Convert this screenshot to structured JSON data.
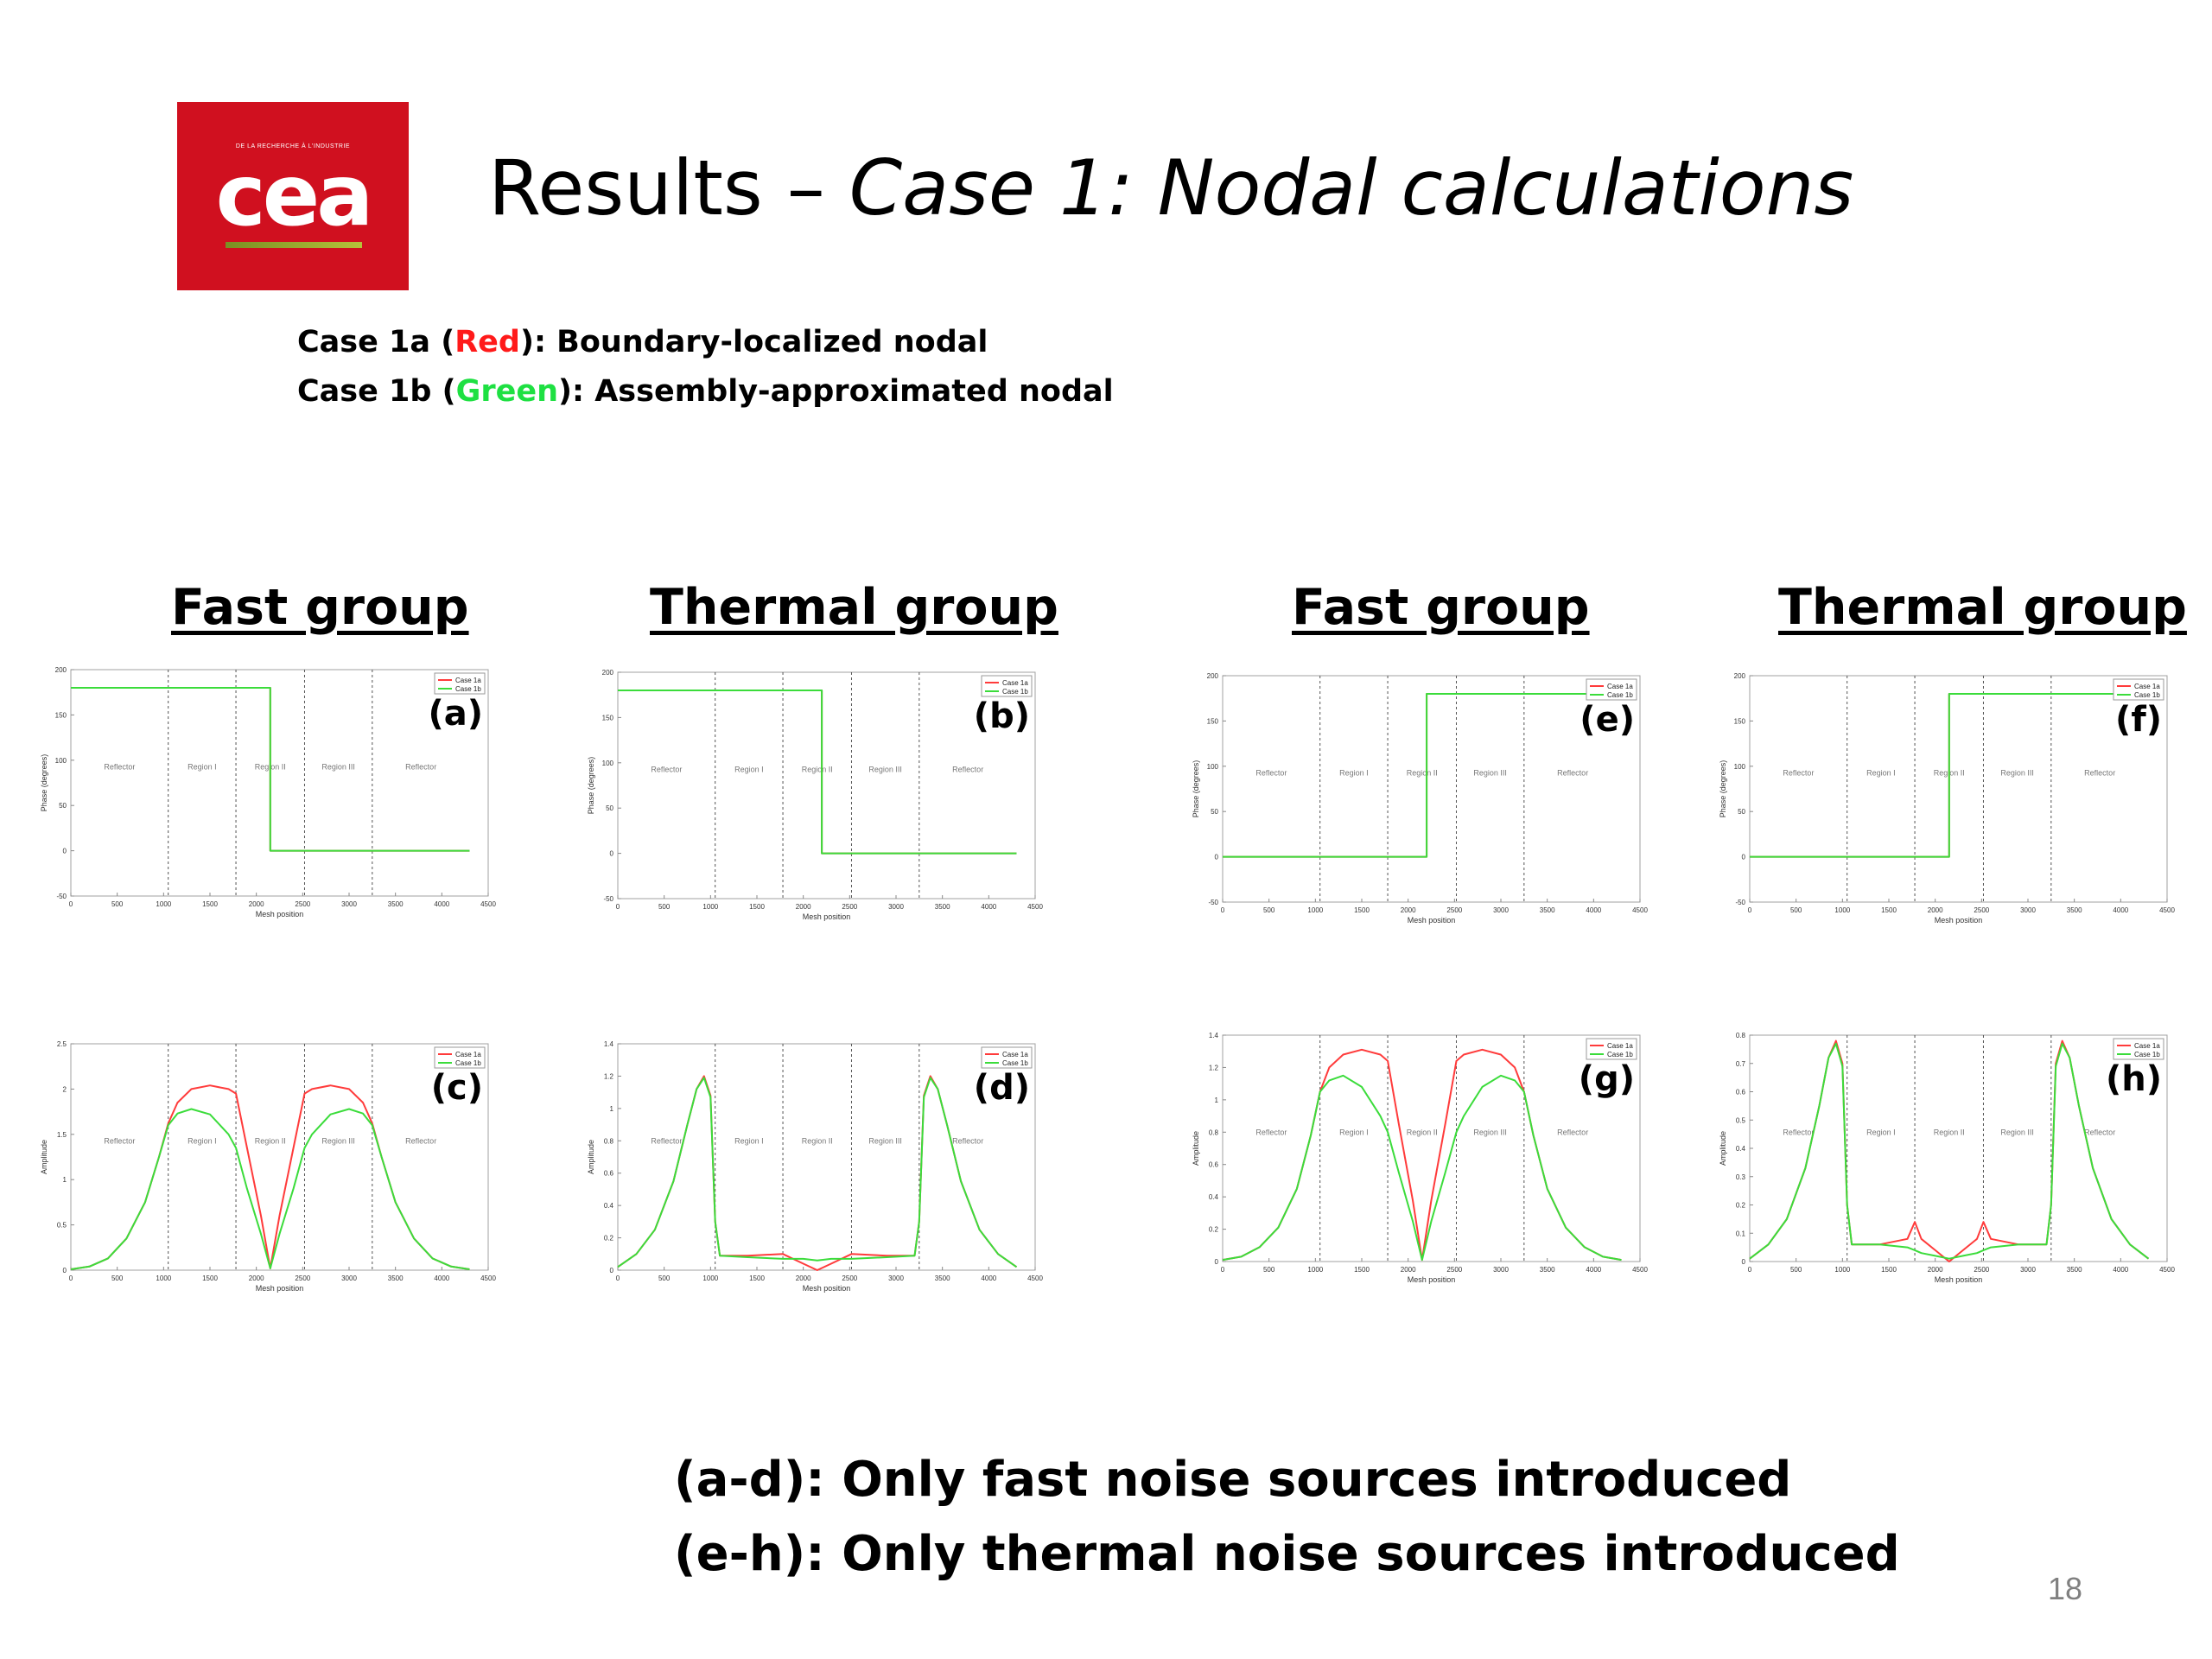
{
  "slide": {
    "logo": {
      "tagline": "DE LA RECHERCHE À L'INDUSTRIE",
      "wordmark": "cea"
    },
    "title_plain": "Results – ",
    "title_italic": "Case 1: Nodal calculations",
    "case_lines": [
      {
        "prefix": "Case 1a (",
        "colored": "Red",
        "suffix": "): Boundary-localized nodal",
        "color": "#ff1a1a"
      },
      {
        "prefix": "Case 1b (",
        "colored": "Green",
        "suffix": "): Assembly-approximated nodal",
        "color": "#1ee042"
      }
    ],
    "group_headers": [
      "Fast group",
      "Thermal group",
      "Fast group",
      "Thermal group"
    ],
    "footer_lines": [
      "(a-d): Only fast noise sources introduced",
      "(e-h): Only thermal noise sources introduced"
    ],
    "page_number": "18"
  },
  "chart_data": [
    {
      "id": "a",
      "type": "line",
      "panel_label": "(a)",
      "xlabel": "Mesh position",
      "ylabel": "Phase (degrees)",
      "xlim": [
        0,
        4500
      ],
      "ylim": [
        -50,
        200
      ],
      "xticks": [
        0,
        500,
        1000,
        1500,
        2000,
        2500,
        3000,
        3500,
        4000,
        4500
      ],
      "yticks": [
        -50,
        0,
        50,
        100,
        150,
        200
      ],
      "region_boundaries": [
        1050,
        1780,
        2520,
        3250
      ],
      "region_labels": [
        "Reflector",
        "Region I",
        "Region II",
        "Region III",
        "Reflector"
      ],
      "legend": [
        "Case 1a",
        "Case 1b"
      ],
      "series": [
        {
          "name": "Case 1a",
          "color": "#ff3b3b",
          "x": [
            0,
            2150,
            2150,
            4300
          ],
          "y": [
            180,
            180,
            0,
            0
          ]
        },
        {
          "name": "Case 1b",
          "color": "#3bdc3b",
          "x": [
            0,
            2150,
            2150,
            4300
          ],
          "y": [
            180,
            180,
            0,
            0
          ]
        }
      ]
    },
    {
      "id": "b",
      "type": "line",
      "panel_label": "(b)",
      "xlabel": "Mesh position",
      "ylabel": "Phase (degrees)",
      "xlim": [
        0,
        4500
      ],
      "ylim": [
        -50,
        200
      ],
      "xticks": [
        0,
        500,
        1000,
        1500,
        2000,
        2500,
        3000,
        3500,
        4000,
        4500
      ],
      "yticks": [
        -50,
        0,
        50,
        100,
        150,
        200
      ],
      "region_boundaries": [
        1050,
        1780,
        2520,
        3250
      ],
      "region_labels": [
        "Reflector",
        "Region I",
        "Region II",
        "Region III",
        "Reflector"
      ],
      "legend": [
        "Case 1a",
        "Case 1b"
      ],
      "series": [
        {
          "name": "Case 1a",
          "color": "#ff3b3b",
          "x": [
            0,
            2200,
            2200,
            4300
          ],
          "y": [
            180,
            180,
            0,
            0
          ]
        },
        {
          "name": "Case 1b",
          "color": "#3bdc3b",
          "x": [
            0,
            2200,
            2200,
            4300
          ],
          "y": [
            180,
            180,
            0,
            0
          ]
        }
      ]
    },
    {
      "id": "c",
      "type": "line",
      "panel_label": "(c)",
      "xlabel": "Mesh position",
      "ylabel": "Amplitude",
      "xlim": [
        0,
        4500
      ],
      "ylim": [
        0,
        2.5
      ],
      "xticks": [
        0,
        500,
        1000,
        1500,
        2000,
        2500,
        3000,
        3500,
        4000,
        4500
      ],
      "yticks": [
        0,
        0.5,
        1,
        1.5,
        2,
        2.5
      ],
      "region_boundaries": [
        1050,
        1780,
        2520,
        3250
      ],
      "region_labels": [
        "Reflector",
        "Region I",
        "Region II",
        "Region III",
        "Reflector"
      ],
      "legend": [
        "Case 1a",
        "Case 1b"
      ],
      "series": [
        {
          "name": "Case 1a",
          "color": "#ff3b3b",
          "x": [
            0,
            200,
            400,
            600,
            800,
            950,
            1050,
            1150,
            1300,
            1500,
            1700,
            1780,
            1900,
            2050,
            2150,
            2250,
            2400,
            2520,
            2600,
            2800,
            3000,
            3150,
            3250,
            3350,
            3500,
            3700,
            3900,
            4100,
            4300
          ],
          "y": [
            0.01,
            0.04,
            0.13,
            0.35,
            0.75,
            1.25,
            1.62,
            1.85,
            2.0,
            2.04,
            2.0,
            1.95,
            1.35,
            0.6,
            0.02,
            0.6,
            1.35,
            1.95,
            2.0,
            2.04,
            2.0,
            1.85,
            1.62,
            1.25,
            0.75,
            0.35,
            0.13,
            0.04,
            0.01
          ]
        },
        {
          "name": "Case 1b",
          "color": "#3bdc3b",
          "x": [
            0,
            200,
            400,
            600,
            800,
            950,
            1050,
            1150,
            1300,
            1500,
            1700,
            1780,
            1900,
            2050,
            2150,
            2250,
            2400,
            2520,
            2600,
            2800,
            3000,
            3150,
            3250,
            3350,
            3500,
            3700,
            3900,
            4100,
            4300
          ],
          "y": [
            0.01,
            0.04,
            0.13,
            0.35,
            0.75,
            1.25,
            1.6,
            1.73,
            1.78,
            1.72,
            1.5,
            1.35,
            0.9,
            0.4,
            0.02,
            0.4,
            0.9,
            1.35,
            1.5,
            1.72,
            1.78,
            1.73,
            1.6,
            1.25,
            0.75,
            0.35,
            0.13,
            0.04,
            0.01
          ]
        }
      ]
    },
    {
      "id": "d",
      "type": "line",
      "panel_label": "(d)",
      "xlabel": "Mesh position",
      "ylabel": "Amplitude",
      "xlim": [
        0,
        4500
      ],
      "ylim": [
        0,
        1.4
      ],
      "xticks": [
        0,
        500,
        1000,
        1500,
        2000,
        2500,
        3000,
        3500,
        4000,
        4500
      ],
      "yticks": [
        0,
        0.2,
        0.4,
        0.6,
        0.8,
        1,
        1.2,
        1.4
      ],
      "region_boundaries": [
        1050,
        1780,
        2520,
        3250
      ],
      "region_labels": [
        "Reflector",
        "Region I",
        "Region II",
        "Region III",
        "Reflector"
      ],
      "legend": [
        "Case 1a",
        "Case 1b"
      ],
      "series": [
        {
          "name": "Case 1a",
          "color": "#ff3b3b",
          "x": [
            0,
            200,
            400,
            600,
            750,
            850,
            930,
            1000,
            1050,
            1100,
            1400,
            1780,
            2000,
            2150,
            2300,
            2520,
            2900,
            3200,
            3250,
            3300,
            3370,
            3450,
            3550,
            3700,
            3900,
            4100,
            4300
          ],
          "y": [
            0.02,
            0.1,
            0.25,
            0.55,
            0.9,
            1.12,
            1.2,
            1.08,
            0.3,
            0.09,
            0.09,
            0.1,
            0.04,
            0.0,
            0.04,
            0.1,
            0.09,
            0.09,
            0.3,
            1.08,
            1.2,
            1.12,
            0.9,
            0.55,
            0.25,
            0.1,
            0.02
          ]
        },
        {
          "name": "Case 1b",
          "color": "#3bdc3b",
          "x": [
            0,
            200,
            400,
            600,
            750,
            850,
            930,
            1000,
            1050,
            1100,
            1400,
            1780,
            2000,
            2150,
            2300,
            2520,
            2900,
            3200,
            3250,
            3300,
            3370,
            3450,
            3550,
            3700,
            3900,
            4100,
            4300
          ],
          "y": [
            0.02,
            0.1,
            0.25,
            0.55,
            0.9,
            1.12,
            1.19,
            1.07,
            0.3,
            0.09,
            0.08,
            0.07,
            0.07,
            0.06,
            0.07,
            0.07,
            0.08,
            0.09,
            0.3,
            1.07,
            1.19,
            1.12,
            0.9,
            0.55,
            0.25,
            0.1,
            0.02
          ]
        }
      ]
    },
    {
      "id": "e",
      "type": "line",
      "panel_label": "(e)",
      "xlabel": "Mesh position",
      "ylabel": "Phase (degrees)",
      "xlim": [
        0,
        4500
      ],
      "ylim": [
        -50,
        200
      ],
      "xticks": [
        0,
        500,
        1000,
        1500,
        2000,
        2500,
        3000,
        3500,
        4000,
        4500
      ],
      "yticks": [
        -50,
        0,
        50,
        100,
        150,
        200
      ],
      "region_boundaries": [
        1050,
        1780,
        2520,
        3250
      ],
      "region_labels": [
        "Reflector",
        "Region I",
        "Region II",
        "Region III",
        "Reflector"
      ],
      "legend": [
        "Case 1a",
        "Case 1b"
      ],
      "series": [
        {
          "name": "Case 1a",
          "color": "#ff3b3b",
          "x": [
            0,
            2200,
            2200,
            4300
          ],
          "y": [
            0,
            0,
            180,
            180
          ]
        },
        {
          "name": "Case 1b",
          "color": "#3bdc3b",
          "x": [
            0,
            2200,
            2200,
            4300
          ],
          "y": [
            0,
            0,
            180,
            180
          ]
        }
      ]
    },
    {
      "id": "f",
      "type": "line",
      "panel_label": "(f)",
      "xlabel": "Mesh position",
      "ylabel": "Phase (degrees)",
      "xlim": [
        0,
        4500
      ],
      "ylim": [
        -50,
        200
      ],
      "xticks": [
        0,
        500,
        1000,
        1500,
        2000,
        2500,
        3000,
        3500,
        4000,
        4500
      ],
      "yticks": [
        -50,
        0,
        50,
        100,
        150,
        200
      ],
      "region_boundaries": [
        1050,
        1780,
        2520,
        3250
      ],
      "region_labels": [
        "Reflector",
        "Region I",
        "Region II",
        "Region III",
        "Reflector"
      ],
      "legend": [
        "Case 1a",
        "Case 1b"
      ],
      "series": [
        {
          "name": "Case 1a",
          "color": "#ff3b3b",
          "x": [
            0,
            2150,
            2150,
            4300
          ],
          "y": [
            0,
            0,
            180,
            180
          ]
        },
        {
          "name": "Case 1b",
          "color": "#3bdc3b",
          "x": [
            0,
            2150,
            2150,
            4300
          ],
          "y": [
            0,
            0,
            180,
            180
          ]
        }
      ]
    },
    {
      "id": "g",
      "type": "line",
      "panel_label": "(g)",
      "xlabel": "Mesh position",
      "ylabel": "Amplitude",
      "xlim": [
        0,
        4500
      ],
      "ylim": [
        0,
        1.4
      ],
      "xticks": [
        0,
        500,
        1000,
        1500,
        2000,
        2500,
        3000,
        3500,
        4000,
        4500
      ],
      "yticks": [
        0,
        0.2,
        0.4,
        0.6,
        0.8,
        1,
        1.2,
        1.4
      ],
      "region_boundaries": [
        1050,
        1780,
        2520,
        3250
      ],
      "region_labels": [
        "Reflector",
        "Region I",
        "Region II",
        "Region III",
        "Reflector"
      ],
      "legend": [
        "Case 1a",
        "Case 1b"
      ],
      "series": [
        {
          "name": "Case 1a",
          "color": "#ff3b3b",
          "x": [
            0,
            200,
            400,
            600,
            800,
            950,
            1050,
            1150,
            1300,
            1500,
            1700,
            1780,
            1900,
            2050,
            2150,
            2250,
            2400,
            2520,
            2600,
            2800,
            3000,
            3150,
            3250,
            3350,
            3500,
            3700,
            3900,
            4100,
            4300
          ],
          "y": [
            0.01,
            0.03,
            0.09,
            0.21,
            0.45,
            0.78,
            1.05,
            1.2,
            1.28,
            1.31,
            1.28,
            1.24,
            0.85,
            0.38,
            0.01,
            0.38,
            0.85,
            1.24,
            1.28,
            1.31,
            1.28,
            1.2,
            1.05,
            0.78,
            0.45,
            0.21,
            0.09,
            0.03,
            0.01
          ]
        },
        {
          "name": "Case 1b",
          "color": "#3bdc3b",
          "x": [
            0,
            200,
            400,
            600,
            800,
            950,
            1050,
            1150,
            1300,
            1500,
            1700,
            1780,
            1900,
            2050,
            2150,
            2250,
            2400,
            2520,
            2600,
            2800,
            3000,
            3150,
            3250,
            3350,
            3500,
            3700,
            3900,
            4100,
            4300
          ],
          "y": [
            0.01,
            0.03,
            0.09,
            0.21,
            0.45,
            0.78,
            1.05,
            1.12,
            1.15,
            1.08,
            0.9,
            0.8,
            0.55,
            0.25,
            0.01,
            0.25,
            0.55,
            0.8,
            0.9,
            1.08,
            1.15,
            1.12,
            1.05,
            0.78,
            0.45,
            0.21,
            0.09,
            0.03,
            0.01
          ]
        }
      ]
    },
    {
      "id": "h",
      "type": "line",
      "panel_label": "(h)",
      "xlabel": "Mesh position",
      "ylabel": "Amplitude",
      "xlim": [
        0,
        4500
      ],
      "ylim": [
        0,
        0.8
      ],
      "xticks": [
        0,
        500,
        1000,
        1500,
        2000,
        2500,
        3000,
        3500,
        4000,
        4500
      ],
      "yticks": [
        0,
        0.1,
        0.2,
        0.3,
        0.4,
        0.5,
        0.6,
        0.7,
        0.8
      ],
      "region_boundaries": [
        1050,
        1780,
        2520,
        3250
      ],
      "region_labels": [
        "Reflector",
        "Region I",
        "Region II",
        "Region III",
        "Reflector"
      ],
      "legend": [
        "Case 1a",
        "Case 1b"
      ],
      "series": [
        {
          "name": "Case 1a",
          "color": "#ff3b3b",
          "x": [
            0,
            200,
            400,
            600,
            750,
            850,
            930,
            1000,
            1050,
            1100,
            1400,
            1700,
            1780,
            1850,
            2000,
            2150,
            2300,
            2450,
            2520,
            2600,
            2900,
            3200,
            3250,
            3300,
            3370,
            3450,
            3550,
            3700,
            3900,
            4100,
            4300
          ],
          "y": [
            0.01,
            0.06,
            0.15,
            0.33,
            0.55,
            0.72,
            0.78,
            0.7,
            0.2,
            0.06,
            0.06,
            0.08,
            0.14,
            0.08,
            0.04,
            0.0,
            0.04,
            0.08,
            0.14,
            0.08,
            0.06,
            0.06,
            0.2,
            0.7,
            0.78,
            0.72,
            0.55,
            0.33,
            0.15,
            0.06,
            0.01
          ]
        },
        {
          "name": "Case 1b",
          "color": "#3bdc3b",
          "x": [
            0,
            200,
            400,
            600,
            750,
            850,
            930,
            1000,
            1050,
            1100,
            1400,
            1700,
            1780,
            1850,
            2000,
            2150,
            2300,
            2450,
            2520,
            2600,
            2900,
            3200,
            3250,
            3300,
            3370,
            3450,
            3550,
            3700,
            3900,
            4100,
            4300
          ],
          "y": [
            0.01,
            0.06,
            0.15,
            0.33,
            0.55,
            0.72,
            0.77,
            0.69,
            0.2,
            0.06,
            0.06,
            0.05,
            0.04,
            0.03,
            0.02,
            0.01,
            0.02,
            0.03,
            0.04,
            0.05,
            0.06,
            0.06,
            0.2,
            0.69,
            0.77,
            0.72,
            0.55,
            0.33,
            0.15,
            0.06,
            0.01
          ]
        }
      ]
    }
  ]
}
